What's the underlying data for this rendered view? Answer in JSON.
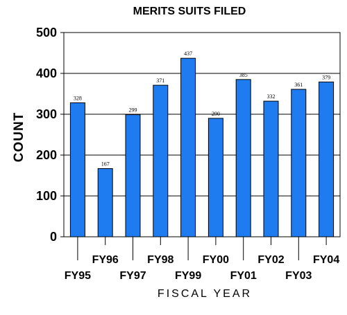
{
  "chart_data": {
    "type": "bar",
    "title": "MERITS SUITS FILED",
    "xlabel": "FISCAL YEAR",
    "ylabel": "COUNT",
    "categories": [
      "FY95",
      "FY96",
      "FY97",
      "FY98",
      "FY99",
      "FY00",
      "FY01",
      "FY02",
      "FY03",
      "FY04"
    ],
    "values": [
      328,
      167,
      299,
      371,
      437,
      290,
      385,
      332,
      361,
      379
    ],
    "data_labels": [
      "328",
      "167",
      "299",
      "371",
      "437",
      "290",
      "385",
      "332",
      "361",
      "379"
    ],
    "yticks": [
      "0",
      "100",
      "200",
      "300",
      "400",
      "500"
    ],
    "ylim": [
      0,
      500
    ],
    "grid": "horizontal",
    "legend": "none",
    "bar_color": "#1e7cf0",
    "bar_stroke": "#000000"
  }
}
